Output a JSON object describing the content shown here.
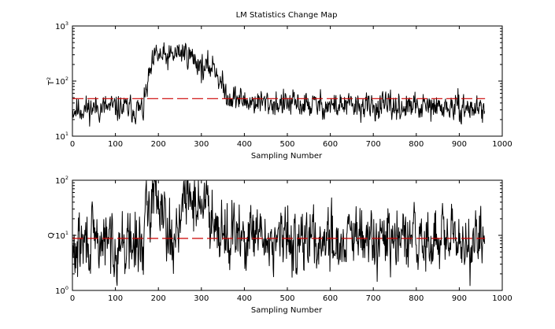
{
  "chart_data": [
    {
      "type": "line",
      "title": "LM Statistics Change Map",
      "xlabel": "Sampling Number",
      "ylabel": "T",
      "ylabel_sup": "2",
      "xlim": [
        0,
        1000
      ],
      "xticks": [
        "0",
        "100",
        "200",
        "300",
        "400",
        "500",
        "600",
        "700",
        "800",
        "900",
        "1000"
      ],
      "yscale": "log",
      "ylim": [
        10,
        1000
      ],
      "yticks": [
        {
          "base": "10",
          "exp": "1",
          "value": 10
        },
        {
          "base": "10",
          "exp": "2",
          "value": 100
        },
        {
          "base": "10",
          "exp": "3",
          "value": 1000
        }
      ],
      "grid": false,
      "control_limit": 48,
      "limit_color": "#cc0000",
      "line_color": "#000000",
      "seed": 11,
      "noise": 0.17,
      "n": 960,
      "trend": [
        [
          0,
          30
        ],
        [
          60,
          33
        ],
        [
          120,
          32
        ],
        [
          165,
          30
        ],
        [
          170,
          55
        ],
        [
          180,
          130
        ],
        [
          195,
          300
        ],
        [
          210,
          270
        ],
        [
          225,
          260
        ],
        [
          245,
          330
        ],
        [
          265,
          330
        ],
        [
          280,
          260
        ],
        [
          295,
          210
        ],
        [
          305,
          160
        ],
        [
          315,
          170
        ],
        [
          330,
          200
        ],
        [
          345,
          90
        ],
        [
          360,
          55
        ],
        [
          400,
          43
        ],
        [
          500,
          38
        ],
        [
          700,
          34
        ],
        [
          960,
          32
        ]
      ]
    },
    {
      "type": "line",
      "title": "",
      "xlabel": "Sampling Number",
      "ylabel": "Q",
      "xlim": [
        0,
        1000
      ],
      "xticks": [
        "0",
        "100",
        "200",
        "300",
        "400",
        "500",
        "600",
        "700",
        "800",
        "900",
        "1000"
      ],
      "yscale": "log",
      "ylim": [
        1,
        100
      ],
      "yticks": [
        {
          "base": "10",
          "exp": "0",
          "value": 1
        },
        {
          "base": "10",
          "exp": "1",
          "value": 10
        },
        {
          "base": "10",
          "exp": "2",
          "value": 100
        }
      ],
      "grid": false,
      "control_limit": 8.8,
      "limit_color": "#cc0000",
      "line_color": "#000000",
      "seed": 29,
      "noise": 0.42,
      "n": 960,
      "trend": [
        [
          0,
          4
        ],
        [
          20,
          7
        ],
        [
          60,
          7.5
        ],
        [
          120,
          7
        ],
        [
          160,
          6
        ],
        [
          175,
          25
        ],
        [
          190,
          70
        ],
        [
          205,
          50
        ],
        [
          220,
          22
        ],
        [
          232,
          5
        ],
        [
          245,
          20
        ],
        [
          260,
          40
        ],
        [
          280,
          45
        ],
        [
          300,
          40
        ],
        [
          320,
          30
        ],
        [
          340,
          18
        ],
        [
          360,
          10
        ],
        [
          400,
          8.5
        ],
        [
          960,
          7.5
        ]
      ]
    }
  ]
}
